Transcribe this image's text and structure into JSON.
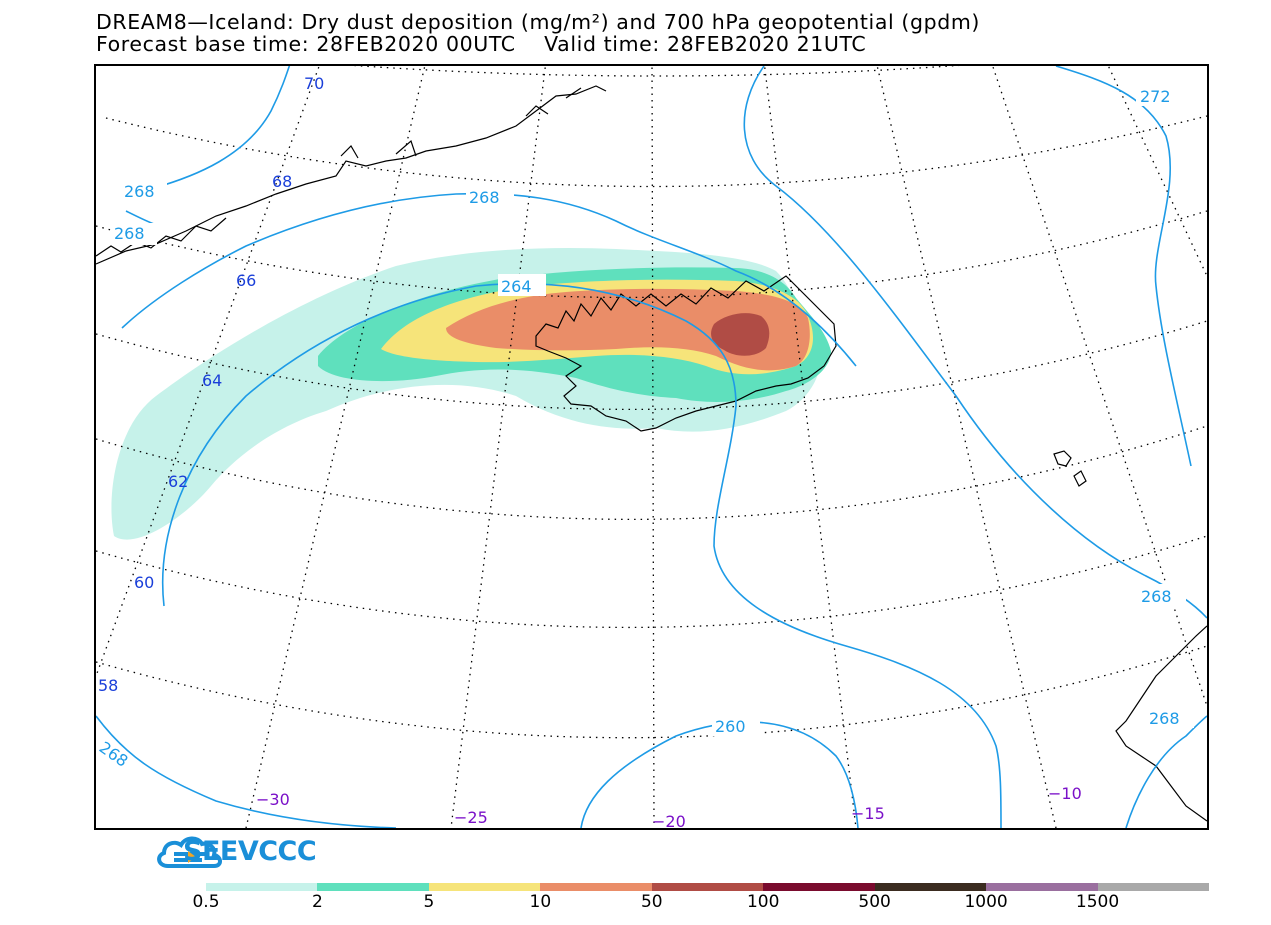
{
  "title": {
    "line1": "DREAM8—Iceland: Dry dust deposition (mg/m²) and 700 hPa geopotential (gpdm)",
    "line2": "Forecast base time: 28FEB2020 00UTC    Valid time: 28FEB2020 21UTC"
  },
  "map": {
    "latitude_labels": [
      "70",
      "68",
      "66",
      "64",
      "62",
      "60",
      "58"
    ],
    "longitude_labels": [
      "−30",
      "−25",
      "−20",
      "−15",
      "−10"
    ],
    "contour_labels": [
      "272",
      "268",
      "268",
      "268",
      "264",
      "268",
      "268",
      "260",
      "268",
      "268"
    ],
    "colors": {
      "contour": "#1e9be6",
      "lat_label": "#1a3fd9",
      "lon_label": "#7a10c8",
      "coast": "#000000",
      "grid": "#000000"
    }
  },
  "logo": {
    "text": "SEEVCCC",
    "icon": "cloud-icon"
  },
  "colorbar": {
    "colors": [
      "#c6f2ea",
      "#5fe0bd",
      "#f6e47a",
      "#ea8d68",
      "#b04c45",
      "#7a0b2e",
      "#3b2c20",
      "#9a6f9f",
      "#a9a9a9"
    ],
    "labels": [
      "0.5",
      "2",
      "5",
      "10",
      "50",
      "100",
      "500",
      "1000",
      "1500"
    ]
  }
}
